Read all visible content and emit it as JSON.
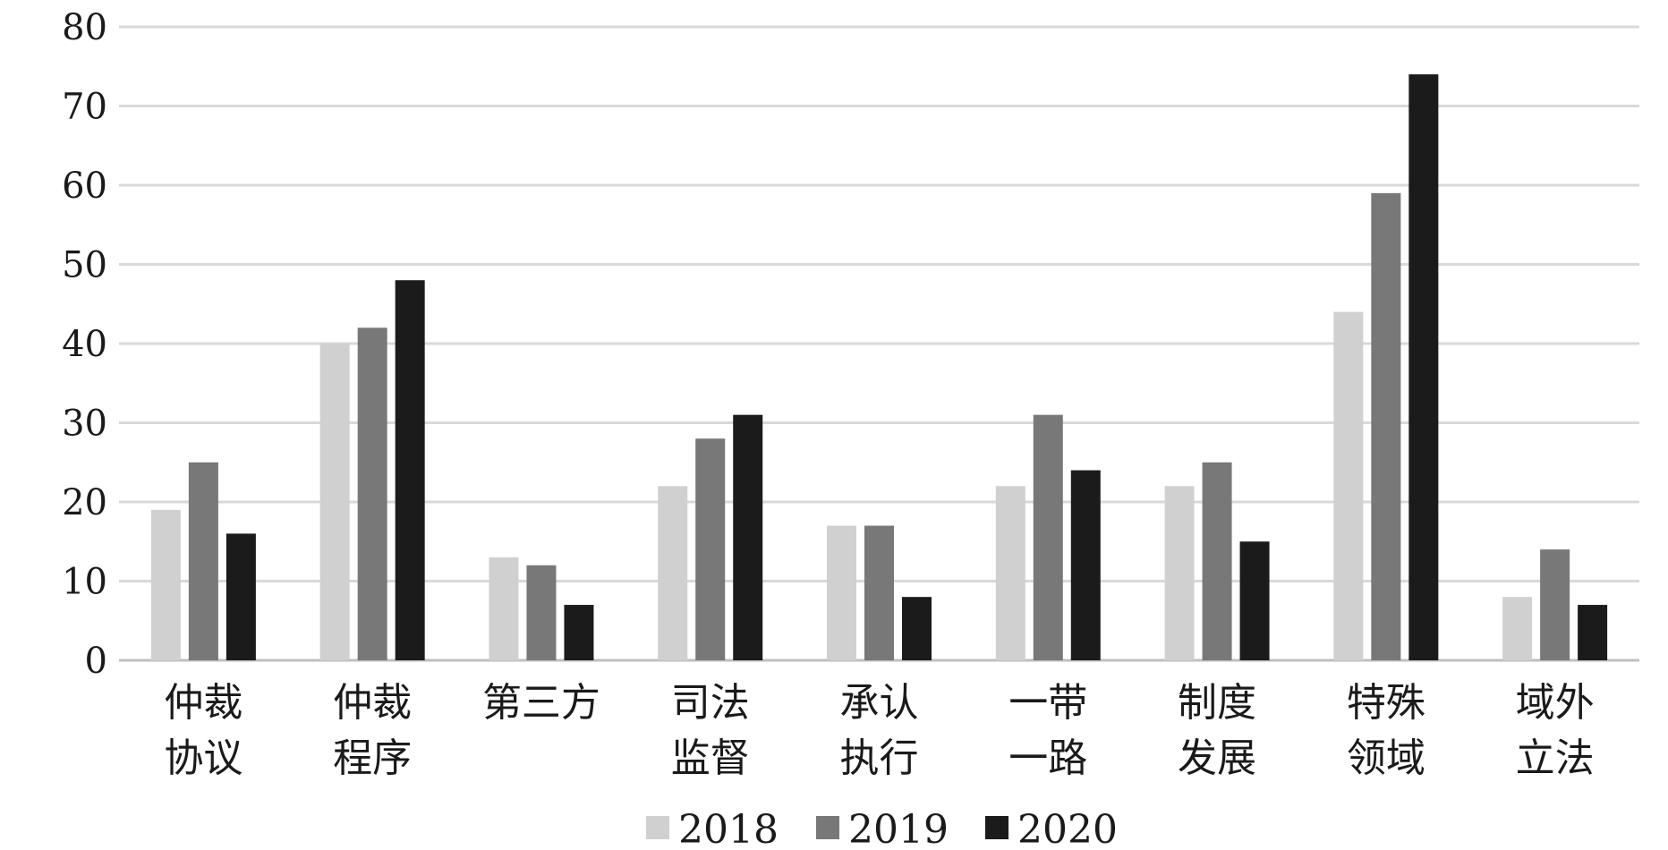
{
  "chart_data": {
    "type": "bar",
    "categories": [
      [
        "仲裁",
        "协议"
      ],
      [
        "仲裁",
        "程序"
      ],
      [
        "第三方"
      ],
      [
        "司法",
        "监督"
      ],
      [
        "承认",
        "执行"
      ],
      [
        "一带",
        "一路"
      ],
      [
        "制度",
        "发展"
      ],
      [
        "特殊",
        "领域"
      ],
      [
        "域外",
        "立法"
      ]
    ],
    "series": [
      {
        "name": "2018",
        "color": "#d0d0d0",
        "values": [
          19,
          40,
          13,
          22,
          17,
          22,
          22,
          44,
          8
        ]
      },
      {
        "name": "2019",
        "color": "#787878",
        "values": [
          25,
          42,
          12,
          28,
          17,
          31,
          25,
          59,
          14
        ]
      },
      {
        "name": "2020",
        "color": "#1b1b1b",
        "values": [
          16,
          48,
          7,
          31,
          8,
          24,
          15,
          74,
          7
        ]
      }
    ],
    "title": "",
    "xlabel": "",
    "ylabel": "",
    "ylim": [
      0,
      80
    ],
    "yticks": [
      "0",
      "10",
      "20",
      "30",
      "40",
      "50",
      "60",
      "70",
      "80"
    ],
    "grid": true,
    "legend_position": "bottom-center"
  }
}
